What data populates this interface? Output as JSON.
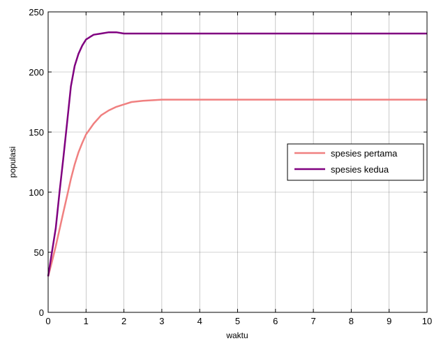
{
  "chart_data": {
    "type": "line",
    "title": "",
    "xlabel": "waktu",
    "ylabel": "populasi",
    "xlim": [
      0,
      10
    ],
    "ylim": [
      0,
      250
    ],
    "x_ticks": [
      0,
      1,
      2,
      3,
      4,
      5,
      6,
      7,
      8,
      9,
      10
    ],
    "y_ticks": [
      0,
      50,
      100,
      150,
      200,
      250
    ],
    "grid": true,
    "legend_position": "right",
    "series": [
      {
        "name": "spesies pertama",
        "color": "#f08080",
        "x": [
          0,
          0.1,
          0.2,
          0.3,
          0.4,
          0.5,
          0.6,
          0.7,
          0.8,
          0.9,
          1.0,
          1.2,
          1.4,
          1.6,
          1.8,
          2.0,
          2.2,
          2.5,
          3.0,
          4.0,
          5.0,
          6.0,
          7.0,
          8.0,
          9.0,
          10.0
        ],
        "values": [
          30,
          42,
          55,
          69,
          83,
          97,
          111,
          123,
          133,
          141,
          148,
          157,
          164,
          168,
          171,
          173,
          175,
          176,
          177,
          177,
          177,
          177,
          177,
          177,
          177,
          177
        ]
      },
      {
        "name": "spesies kedua",
        "color": "#800080",
        "x": [
          0,
          0.1,
          0.2,
          0.3,
          0.4,
          0.5,
          0.6,
          0.7,
          0.8,
          0.9,
          1.0,
          1.1,
          1.2,
          1.4,
          1.6,
          1.8,
          2.0,
          2.5,
          3.0,
          4.0,
          5.0,
          6.0,
          7.0,
          8.0,
          9.0,
          10.0
        ],
        "values": [
          30,
          50,
          70,
          100,
          128,
          158,
          188,
          205,
          215,
          222,
          227,
          229,
          231,
          232,
          233,
          233,
          232,
          232,
          232,
          232,
          232,
          232,
          232,
          232,
          232,
          232
        ]
      }
    ]
  }
}
